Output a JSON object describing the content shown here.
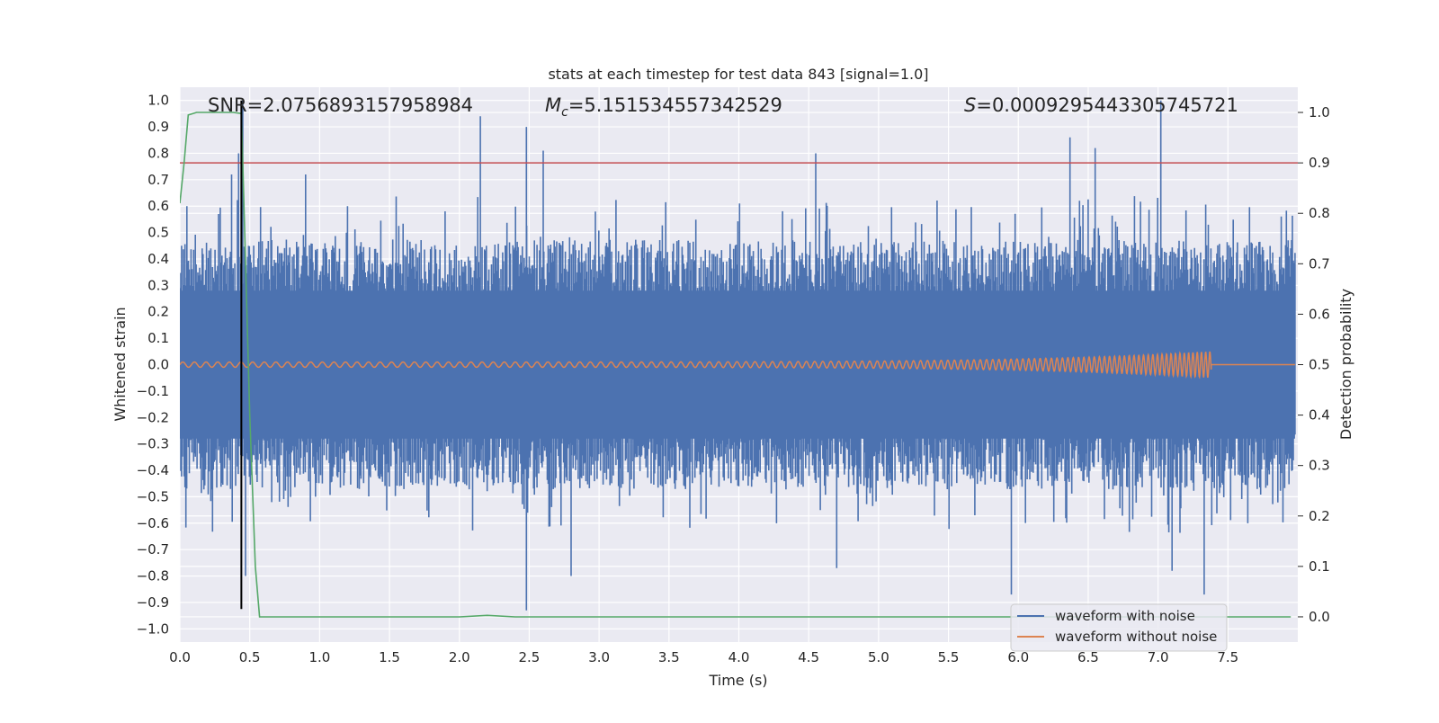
{
  "chart_data": {
    "type": "line",
    "title": "stats at each timestep for test data 843 [signal=1.0]",
    "xlabel": "Time (s)",
    "ylabel": "Whitened strain",
    "ylabel_right": "Detection probability",
    "xlim": [
      0.0,
      8.0
    ],
    "ylim": [
      -1.05,
      1.05
    ],
    "ylim_right": [
      -0.05,
      1.05
    ],
    "xticks": [
      "0.0",
      "0.5",
      "1.0",
      "1.5",
      "2.0",
      "2.5",
      "3.0",
      "3.5",
      "4.0",
      "4.5",
      "5.0",
      "5.5",
      "6.0",
      "6.5",
      "7.0",
      "7.5"
    ],
    "xtick_values": [
      0.0,
      0.5,
      1.0,
      1.5,
      2.0,
      2.5,
      3.0,
      3.5,
      4.0,
      4.5,
      5.0,
      5.5,
      6.0,
      6.5,
      7.0,
      7.5
    ],
    "yticks": [
      "1.0",
      "0.9",
      "0.8",
      "0.7",
      "0.6",
      "0.5",
      "0.4",
      "0.3",
      "0.2",
      "0.1",
      "0.0",
      "−0.1",
      "−0.2",
      "−0.3",
      "−0.4",
      "−0.5",
      "−0.6",
      "−0.7",
      "−0.8",
      "−0.9",
      "−1.0"
    ],
    "ytick_values": [
      1.0,
      0.9,
      0.8,
      0.7,
      0.6,
      0.5,
      0.4,
      0.3,
      0.2,
      0.1,
      0.0,
      -0.1,
      -0.2,
      -0.3,
      -0.4,
      -0.5,
      -0.6,
      -0.7,
      -0.8,
      -0.9,
      -1.0
    ],
    "yticks_right": [
      "1.0",
      "0.9",
      "0.8",
      "0.7",
      "0.6",
      "0.5",
      "0.4",
      "0.3",
      "0.2",
      "0.1",
      "0.0"
    ],
    "ytick_right_values": [
      1.0,
      0.9,
      0.8,
      0.7,
      0.6,
      0.5,
      0.4,
      0.3,
      0.2,
      0.1,
      0.0
    ],
    "annotations": {
      "snr": "SNR=2.0756893157958984",
      "mc_symbol": "M",
      "mc_sub": "c",
      "mc_value": "=5.151534557342529",
      "s_symbol": "S",
      "s_value": "=0.0009295443305745721"
    },
    "series": [
      {
        "name": "waveform with noise",
        "color": "#4c72b0",
        "description": "noisy whitened strain",
        "envelope_pos_typical": 0.45,
        "envelope_neg_typical": -0.45,
        "spikes": [
          [
            0.05,
            0.6
          ],
          [
            0.37,
            0.72
          ],
          [
            0.42,
            0.8
          ],
          [
            0.45,
            1.0
          ],
          [
            0.47,
            -0.8
          ],
          [
            0.9,
            0.72
          ],
          [
            1.2,
            0.6
          ],
          [
            2.15,
            0.94
          ],
          [
            2.48,
            0.9
          ],
          [
            2.48,
            -0.93
          ],
          [
            2.8,
            -0.8
          ],
          [
            4.55,
            0.8
          ],
          [
            4.7,
            -0.77
          ],
          [
            6.37,
            0.86
          ],
          [
            6.55,
            0.82
          ],
          [
            7.02,
            1.0
          ],
          [
            7.33,
            -0.87
          ],
          [
            7.1,
            -0.78
          ],
          [
            5.95,
            -0.87
          ],
          [
            2.6,
            0.81
          ]
        ]
      },
      {
        "name": "waveform without noise",
        "color": "#dd8452",
        "description": "chirp signal",
        "amplitude_start": 0.01,
        "amplitude_end": 0.05,
        "t_end": 7.38
      },
      {
        "name": "detection probability",
        "color": "#55a868",
        "axis": "right",
        "x": [
          0.0,
          0.03,
          0.06,
          0.12,
          0.2,
          0.3,
          0.38,
          0.44,
          0.46,
          0.5,
          0.54,
          0.57,
          0.62,
          2.0,
          2.2,
          2.4,
          7.3,
          7.5,
          7.95
        ],
        "y": [
          0.82,
          0.9,
          0.995,
          1.0,
          1.0,
          1.0,
          1.0,
          0.998,
          0.8,
          0.4,
          0.1,
          0.0,
          0.0,
          0.0,
          0.003,
          0.0,
          0.0,
          0.0,
          0.0
        ]
      }
    ],
    "threshold": {
      "value": 0.9,
      "axis": "right",
      "color": "#c44e52"
    },
    "event_marker": {
      "x": 0.44,
      "y_from": -0.925,
      "y_to": 1.0,
      "color": "#000000"
    },
    "legend": {
      "location": "lower-right",
      "entries": [
        {
          "label": "waveform with noise",
          "color": "#4c72b0"
        },
        {
          "label": "waveform without noise",
          "color": "#dd8452"
        }
      ]
    },
    "style": {
      "background": "#eaeaf2",
      "grid": true,
      "grid_color": "#ffffff"
    }
  }
}
